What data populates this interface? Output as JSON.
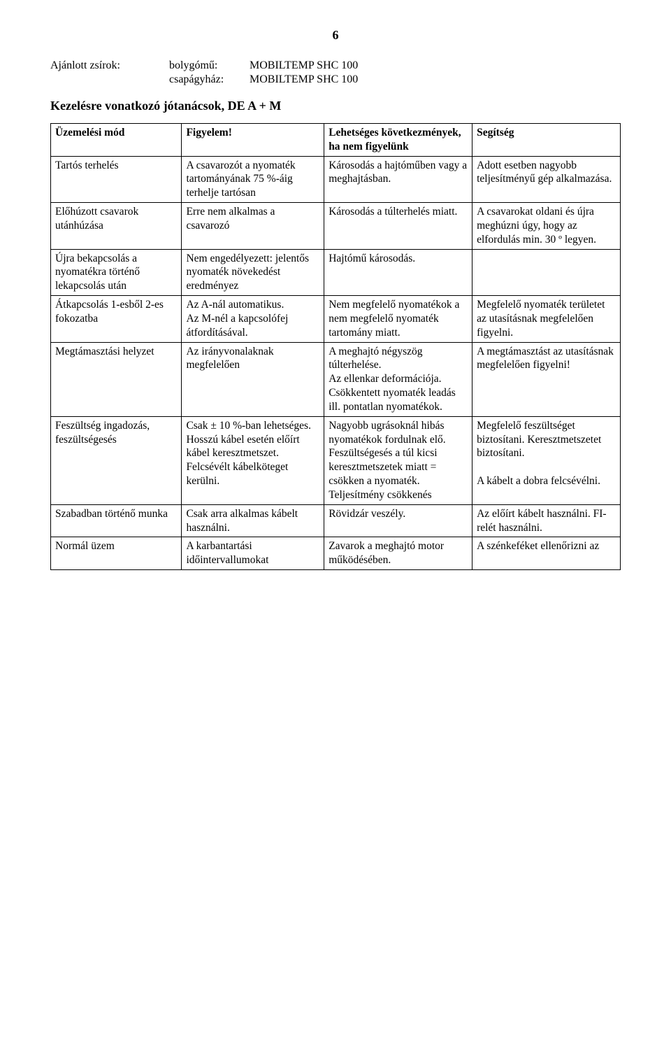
{
  "page_number": "6",
  "intro": {
    "label": "Ajánlott zsírok:",
    "row1_key": "bolygómű:",
    "row1_val": "MOBILTEMP SHC 100",
    "row2_key": "csapágyház:",
    "row2_val": "MOBILTEMP SHC 100"
  },
  "section_title": "Kezelésre vonatkozó jótanácsok, DE A + M",
  "table": {
    "header": {
      "c1": "Üzemelési mód",
      "c2": "Figyelem!",
      "c3": "Lehetséges következmények, ha nem figyelünk",
      "c4": "Segítség"
    },
    "rows": [
      {
        "c1": "Tartós terhelés",
        "c2": "A csavarozót a nyomaték tartományának 75 %-áig terhelje tartósan",
        "c3": "Károsodás a hajtóműben vagy a meghajtásban.",
        "c4": "Adott esetben nagyobb teljesítményű gép alkalmazása."
      },
      {
        "c1": "Előhúzott csavarok utánhúzása",
        "c2": "Erre nem alkalmas a csavarozó",
        "c3": "Károsodás a túlterhelés miatt.",
        "c4": "A csavarokat oldani és újra meghúzni úgy, hogy az elfordulás min. 30 º legyen."
      },
      {
        "c1": "Újra bekapcsolás a nyomatékra történő lekapcsolás után",
        "c2": "Nem engedélyezett: jelentős nyomaték növekedést eredményez",
        "c3": "Hajtómű károsodás.",
        "c4": ""
      },
      {
        "c1": "Átkapcsolás 1-esből 2-es fokozatba",
        "c2": "Az A-nál automatikus.\nAz M-nél a kapcsolófej átfordításával.",
        "c3": "Nem megfelelő nyomatékok a nem megfelelő nyomaték tartomány miatt.",
        "c4": " Megfelelő nyomaték területet az utasításnak megfelelően figyelni."
      },
      {
        "c1": "Megtámasztási helyzet",
        "c2": "Az irányvonalaknak megfelelően",
        "c3": "A meghajtó négyszög túlterhelése.\nAz ellenkar deformációja.\nCsökkentett nyomaték leadás ill. pontatlan nyomatékok.",
        "c4": "A megtámasztást az utasításnak megfelelően figyelni!"
      },
      {
        "c1": "Feszültség ingadozás, feszültségesés",
        "c2": "Csak ± 10 %-ban lehetséges. Hosszú kábel esetén előírt kábel keresztmetszet. Felcsévélt kábelköteget kerülni.",
        "c3": "Nagyobb ugrásoknál hibás nyomatékok fordulnak elő. Feszültségesés a túl kicsi keresztmetszetek miatt = csökken a nyomaték. Teljesítmény csökkenés",
        "c4": "Megfelelő feszültséget biztosítani. Keresztmetszetet biztosítani.\n\nA kábelt a dobra felcsévélni."
      },
      {
        "c1": "Szabadban történő munka",
        "c2": "Csak arra alkalmas kábelt használni.",
        "c3": "Rövidzár veszély.",
        "c4": "Az előírt kábelt használni. FI-relét használni."
      },
      {
        "c1": "Normál üzem",
        "c2": "A karbantartási időintervallumokat",
        "c3": "Zavarok a meghajtó motor működésében.",
        "c4": "A szénkeféket ellenőrizni az"
      }
    ]
  }
}
